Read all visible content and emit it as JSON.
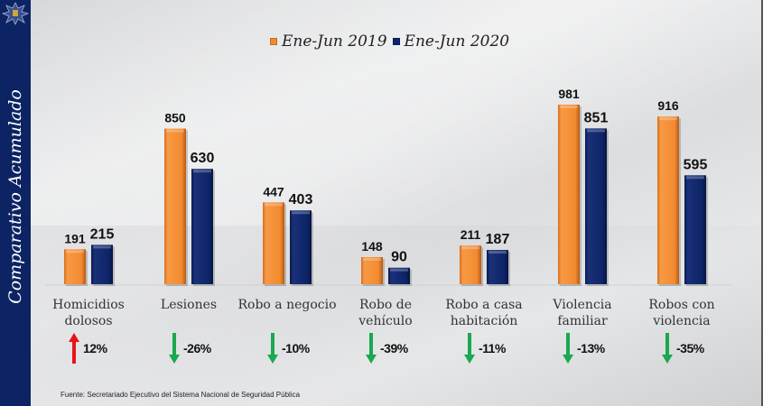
{
  "sidebar": {
    "title": "Comparativo Acumulado",
    "badge_icon": "police-star-badge-icon"
  },
  "legend": [
    {
      "label": "Ene-Jun 2019",
      "color": "#f28a30"
    },
    {
      "label": "Ene-Jun 2020",
      "color": "#0d2468"
    }
  ],
  "source": "Fuente: Secretariado Ejecutivo del Sistema Nacional de Seguridad Pública",
  "chart_data": {
    "type": "bar",
    "title": "",
    "xlabel": "",
    "ylabel": "",
    "ylim": [
      0,
      981
    ],
    "grid": false,
    "legend_position": "top-center",
    "categories": [
      [
        "Homicidios",
        "dolosos"
      ],
      [
        "Lesiones"
      ],
      [
        "Robo a negocio"
      ],
      [
        "Robo de",
        "vehículo"
      ],
      [
        "Robo a casa",
        "habitación"
      ],
      [
        "Violencia",
        "familiar"
      ],
      [
        "Robos con",
        "violencia"
      ]
    ],
    "series": [
      {
        "name": "Ene-Jun 2019",
        "color": "#f28a30",
        "values": [
          191,
          850,
          447,
          148,
          211,
          981,
          916
        ]
      },
      {
        "name": "Ene-Jun 2020",
        "color": "#0d2468",
        "values": [
          215,
          630,
          403,
          90,
          187,
          851,
          595
        ]
      }
    ],
    "changes": [
      {
        "text": "12%",
        "direction": "up",
        "color": "#e8141b"
      },
      {
        "text": "-26%",
        "direction": "down",
        "color": "#1aa850"
      },
      {
        "text": "-10%",
        "direction": "down",
        "color": "#1aa850"
      },
      {
        "text": "-39%",
        "direction": "down",
        "color": "#1aa850"
      },
      {
        "text": "-11%",
        "direction": "down",
        "color": "#1aa850"
      },
      {
        "text": "-13%",
        "direction": "down",
        "color": "#1aa850"
      },
      {
        "text": "-35%",
        "direction": "down",
        "color": "#1aa850"
      }
    ]
  }
}
